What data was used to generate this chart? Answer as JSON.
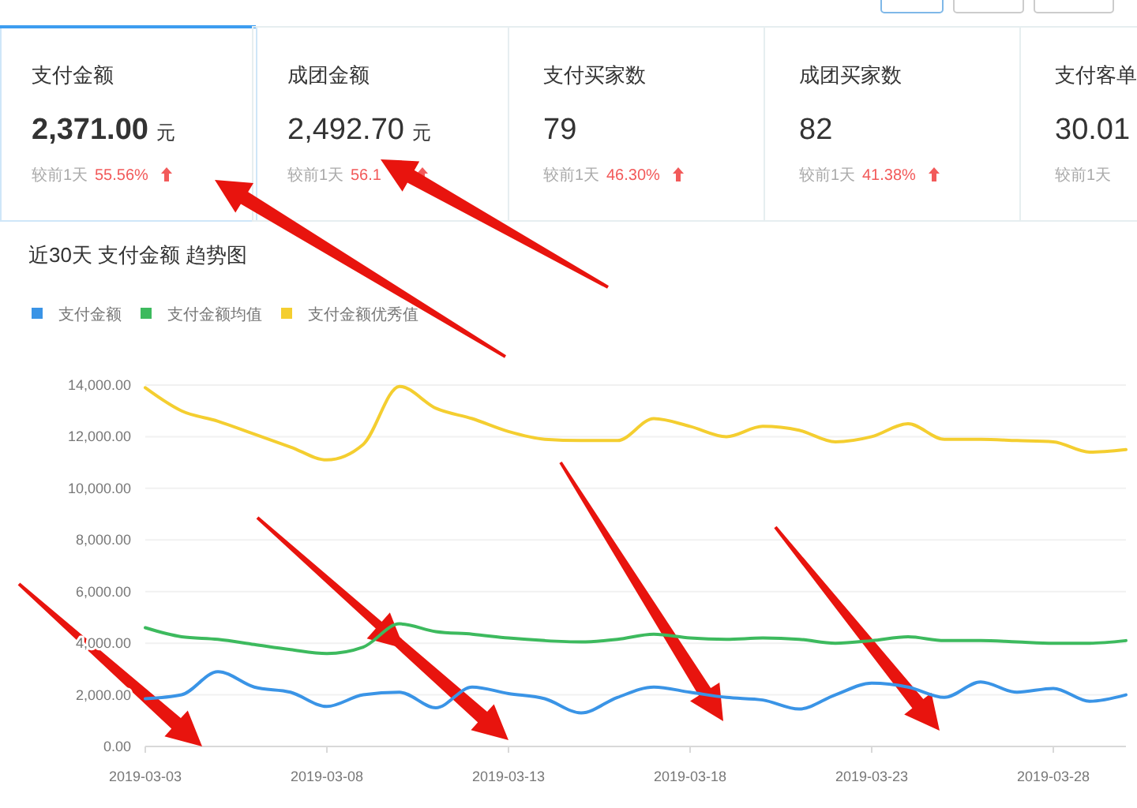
{
  "chart_data": [
    {
      "type": "other",
      "title": "支付金额",
      "subtitle": "2,371.00 元",
      "annotations": [
        "较前1天",
        "55.56%"
      ]
    },
    {
      "type": "other",
      "title": "成团金额",
      "subtitle": "2,492.70 元",
      "annotations": [
        "较前1天",
        "56.1"
      ]
    },
    {
      "type": "other",
      "title": "支付买家数",
      "subtitle": "79",
      "annotations": [
        "较前1天",
        "46.30%"
      ]
    },
    {
      "type": "other",
      "title": "成团买家数",
      "subtitle": "82",
      "annotations": [
        "较前1天",
        "41.38%"
      ]
    },
    {
      "type": "other",
      "title": "支付客单",
      "subtitle": "30.01",
      "annotations": [
        "较前1天"
      ]
    },
    {
      "type": "line",
      "title": "近30天 支付金额 趋势图",
      "x": [
        "2019-03-03",
        "2019-03-04",
        "2019-03-05",
        "2019-03-06",
        "2019-03-07",
        "2019-03-08",
        "2019-03-09",
        "2019-03-10",
        "2019-03-11",
        "2019-03-12",
        "2019-03-13",
        "2019-03-14",
        "2019-03-15",
        "2019-03-16",
        "2019-03-17",
        "2019-03-18",
        "2019-03-19",
        "2019-03-20",
        "2019-03-21",
        "2019-03-22",
        "2019-03-23",
        "2019-03-24",
        "2019-03-25",
        "2019-03-26",
        "2019-03-27",
        "2019-03-28",
        "2019-03-29",
        "2019-03-30"
      ],
      "series": [
        {
          "name": "支付金额",
          "color": "#3a94e6",
          "values": [
            1850,
            2000,
            2900,
            2300,
            2100,
            1550,
            2000,
            2100,
            1500,
            2300,
            2050,
            1850,
            1300,
            1900,
            2300,
            2100,
            1900,
            1800,
            1450,
            2000,
            2450,
            2300,
            1900,
            2500,
            2100,
            2250,
            1750,
            2000
          ]
        },
        {
          "name": "支付金额均值",
          "color": "#3dba5e",
          "values": [
            4600,
            4250,
            4150,
            3950,
            3750,
            3600,
            3850,
            4750,
            4450,
            4350,
            4200,
            4100,
            4050,
            4150,
            4350,
            4200,
            4150,
            4200,
            4150,
            4000,
            4100,
            4250,
            4100,
            4100,
            4050,
            4000,
            4000,
            4100
          ]
        },
        {
          "name": "支付金额优秀值",
          "color": "#f4ce30",
          "values": [
            13900,
            13000,
            12600,
            12100,
            11600,
            11100,
            11700,
            13950,
            13100,
            12700,
            12200,
            11900,
            11850,
            11850,
            12700,
            12400,
            12000,
            12400,
            12250,
            11800,
            12000,
            12500,
            11900,
            11900,
            11850,
            11800,
            11400,
            11500
          ]
        }
      ],
      "xlim": [
        "2019-03-03",
        "2019-03-30"
      ],
      "xticks": [
        "2019-03-03",
        "2019-03-08",
        "2019-03-13",
        "2019-03-18",
        "2019-03-23",
        "2019-03-28"
      ],
      "ylim": [
        0,
        14000
      ],
      "yticks": [
        {
          "value": 0,
          "label": "0.00"
        },
        {
          "value": 2000,
          "label": "2,000.00"
        },
        {
          "value": 4000,
          "label": "4,000.00"
        },
        {
          "value": 6000,
          "label": "6,000.00"
        },
        {
          "value": 8000,
          "label": "8,000.00"
        },
        {
          "value": 10000,
          "label": "10,000.00"
        },
        {
          "value": 12000,
          "label": "12,000.00"
        },
        {
          "value": 14000,
          "label": "14,000.00"
        }
      ],
      "grid": "y",
      "legend": "top left"
    }
  ]
}
